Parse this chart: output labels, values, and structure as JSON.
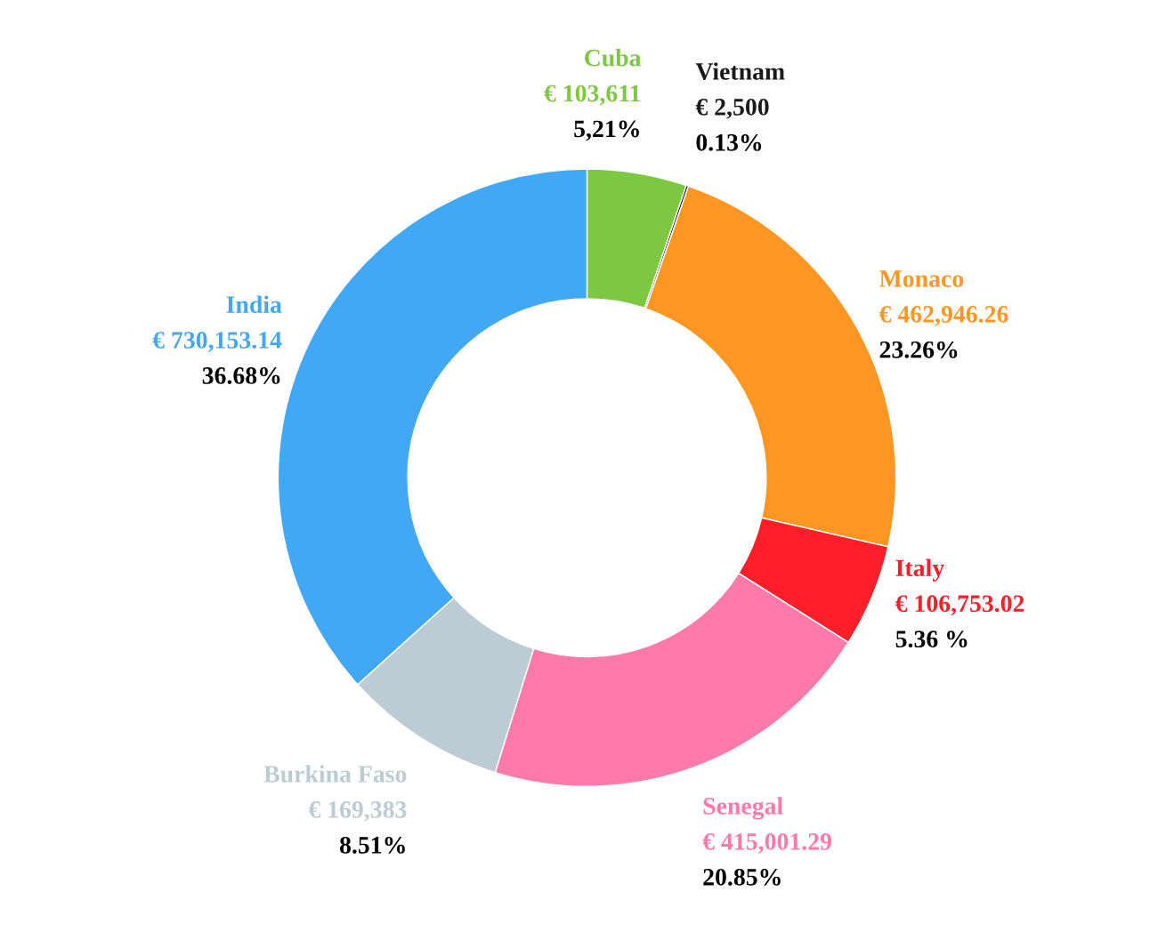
{
  "chart_data": {
    "type": "donut",
    "categories": [
      "Cuba",
      "Vietnam",
      "Monaco",
      "Italy",
      "Senegal",
      "Burkina Faso",
      "India"
    ],
    "values": [
      103611,
      2500,
      462946.26,
      106753.02,
      415001.29,
      169383,
      730153.14
    ],
    "colors": [
      "#7dc843",
      "#1a1a1a",
      "#ff9621",
      "#ff1f29",
      "#ff79a9",
      "#bccbd4",
      "#42a7f5"
    ],
    "value_labels": [
      "€ 103,611\n5,21%",
      "€ 2,500\n0.13%",
      "€ 462,946.26\n23.26%",
      "€ 106,753.02\n5.36 %",
      "€ 415,001.29\n20.85%",
      "€ 169,383\n8.51%",
      "€ 730,153.14\n36.68%"
    ]
  }
}
